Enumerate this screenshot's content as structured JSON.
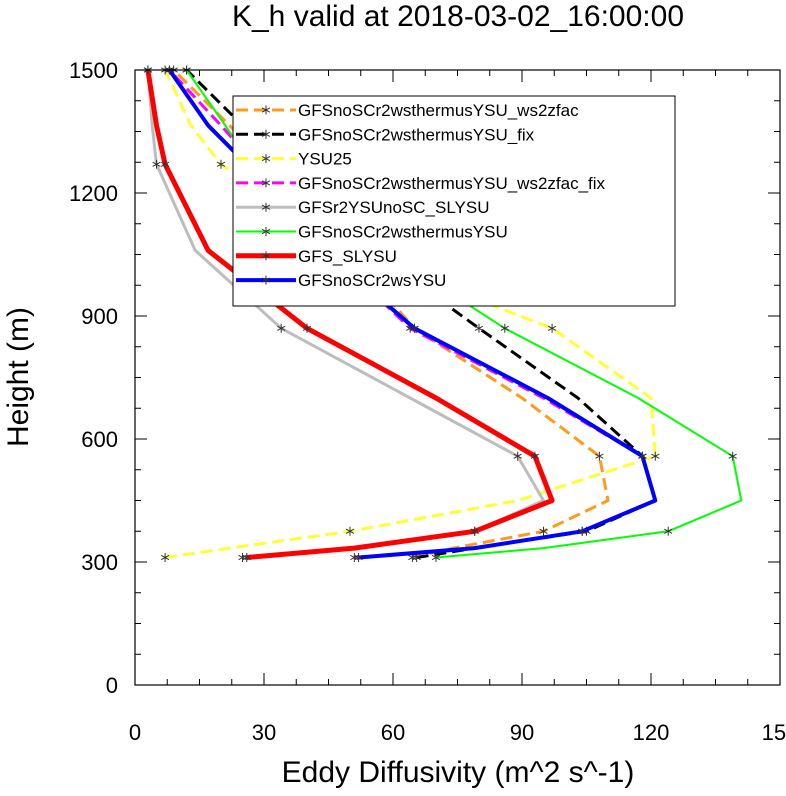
{
  "chart_data": {
    "type": "line",
    "title": "K_h valid at 2018-03-02_16:00:00",
    "xlabel": "Eddy Diffusivity (m^2 s^-1)",
    "ylabel": "Height (m)",
    "xlim": [
      0,
      150
    ],
    "ylim": [
      0,
      1500
    ],
    "xticks": [
      "0",
      "30",
      "60",
      "90",
      "120",
      "150"
    ],
    "yticks": [
      "0",
      "300",
      "600",
      "900",
      "1200",
      "1500"
    ],
    "legend_position": "top-center",
    "series": [
      {
        "name": "GFSnoSCr2wsthermusYSU_ws2zfac",
        "color": "#ff9a1a",
        "dash": "dash",
        "width": 3,
        "x": [
          64.5,
          74,
          95,
          110,
          108,
          90,
          65,
          49,
          30,
          22,
          9
        ],
        "y": [
          311,
          334,
          375,
          450,
          558,
          700,
          870,
          1060,
          1270,
          1365,
          1500
        ]
      },
      {
        "name": "GFSnoSCr2wsthermusYSU_fix",
        "color": "#000000",
        "dash": "dash",
        "width": 3,
        "x": [
          65.5,
          79,
          105,
          121,
          118,
          103,
          80,
          55,
          35,
          25,
          12
        ],
        "y": [
          311,
          334,
          375,
          450,
          558,
          700,
          870,
          1060,
          1270,
          1365,
          1500
        ]
      },
      {
        "name": "YSU25",
        "color": "#ffff33",
        "dash": "dash",
        "width": 3,
        "x": [
          7,
          22,
          50,
          89,
          121,
          120,
          97,
          50,
          20,
          13,
          7
        ],
        "y": [
          311,
          334,
          375,
          450,
          558,
          700,
          870,
          1060,
          1270,
          1365,
          1500
        ]
      },
      {
        "name": "GFSnoSCr2wsthermusYSU_ws2zfac_fix",
        "color": "#ff00ff",
        "dash": "dash",
        "width": 3,
        "x": [
          51,
          79,
          104,
          121,
          118,
          95,
          64,
          45,
          28,
          20,
          8
        ],
        "y": [
          311,
          334,
          375,
          450,
          558,
          700,
          870,
          1060,
          1270,
          1365,
          1500
        ]
      },
      {
        "name": "GFSr2YSUnoSC_SLYSU",
        "color": "#bdbdbd",
        "dash": "solid",
        "width": 3,
        "x": [
          25,
          50,
          79,
          95,
          89,
          64,
          34,
          14,
          5,
          4,
          3
        ],
        "y": [
          311,
          334,
          375,
          450,
          558,
          700,
          870,
          1060,
          1270,
          1365,
          1500
        ]
      },
      {
        "name": "GFSnoSCr2wsthermusYSU",
        "color": "#00ff00",
        "dash": "solid",
        "width": 2,
        "x": [
          70,
          95,
          124,
          141,
          139,
          117,
          86,
          58,
          27,
          21,
          12
        ],
        "y": [
          311,
          334,
          375,
          450,
          558,
          700,
          870,
          1060,
          1270,
          1365,
          1500
        ]
      },
      {
        "name": "GFS_SLYSU",
        "color": "#ff0000",
        "dash": "solid",
        "width": 5,
        "x": [
          26,
          51,
          79,
          97,
          93,
          70,
          40,
          17,
          7,
          5,
          3
        ],
        "y": [
          311,
          334,
          375,
          450,
          558,
          700,
          870,
          1060,
          1270,
          1365,
          1500
        ]
      },
      {
        "name": "GFSnoSCr2wsYSU",
        "color": "#0000ff",
        "dash": "solid",
        "width": 4,
        "x": [
          52,
          79,
          104,
          121,
          118,
          96,
          65,
          44,
          26,
          17,
          8
        ],
        "y": [
          311,
          334,
          375,
          450,
          558,
          700,
          870,
          1060,
          1270,
          1365,
          1500
        ]
      }
    ]
  }
}
